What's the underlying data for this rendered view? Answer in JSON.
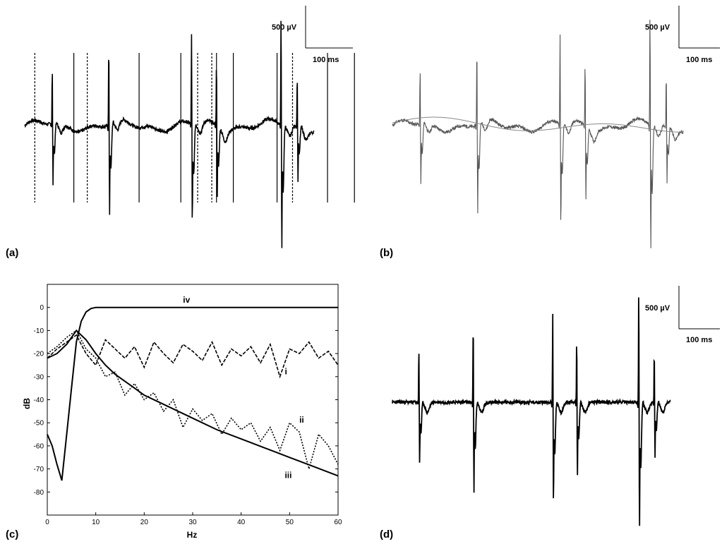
{
  "panels": {
    "a": {
      "label": "(a)"
    },
    "b": {
      "label": "(b)"
    },
    "c": {
      "label": "(c)"
    },
    "d": {
      "label": "(d)"
    }
  },
  "scale_bar": {
    "voltage": "500 µV",
    "time": "100 ms"
  },
  "colors": {
    "trace": "#000000",
    "fit": "#808080",
    "axes": "#000000"
  },
  "chart_data": [
    {
      "panel": "a",
      "type": "line",
      "description_visible": "raw signal with stimulus markers",
      "x_unit": "ms",
      "y_unit": "µV",
      "scale_bar": {
        "y": 500,
        "x": 100
      },
      "markers_solid_ms": [
        73,
        170,
        232,
        285,
        310,
        375,
        450,
        490
      ],
      "markers_dashed_ms": [
        15,
        93,
        257,
        278,
        398
      ],
      "pulses": [
        {
          "t": 40,
          "amp": 0.75
        },
        {
          "t": 124,
          "amp": 1.1
        },
        {
          "t": 247,
          "amp": 1.25
        },
        {
          "t": 284,
          "amp": 0.9
        },
        {
          "t": 380,
          "amp": 1.6
        },
        {
          "t": 404,
          "amp": 0.7
        }
      ]
    },
    {
      "panel": "b",
      "type": "line",
      "description_visible": "signal with fitted artifact curve",
      "x_unit": "ms",
      "y_unit": "µV",
      "scale_bar": {
        "y": 500,
        "x": 100
      },
      "pulses": [
        {
          "t": 40,
          "amp": 0.75
        },
        {
          "t": 124,
          "amp": 1.1
        },
        {
          "t": 247,
          "amp": 1.25
        },
        {
          "t": 284,
          "amp": 0.9
        },
        {
          "t": 380,
          "amp": 1.6
        },
        {
          "t": 404,
          "amp": 0.7
        }
      ]
    },
    {
      "panel": "c",
      "type": "line",
      "title": "",
      "xlabel": "Hz",
      "ylabel": "dB",
      "xlim": [
        0,
        60
      ],
      "ylim": [
        -90,
        10
      ],
      "xticks": [
        0,
        10,
        20,
        30,
        40,
        50,
        60
      ],
      "yticks": [
        0,
        -10,
        -20,
        -30,
        -40,
        -50,
        -60,
        -70,
        -80
      ],
      "series": [
        {
          "name": "i",
          "style": "dashed",
          "x": [
            0,
            2,
            4,
            6,
            8,
            10,
            12,
            14,
            16,
            18,
            20,
            22,
            24,
            26,
            28,
            30,
            32,
            34,
            36,
            38,
            40,
            42,
            44,
            46,
            48,
            50,
            52,
            54,
            56,
            58,
            60
          ],
          "y": [
            -22,
            -18,
            -15,
            -12,
            -20,
            -25,
            -14,
            -18,
            -22,
            -17,
            -26,
            -15,
            -20,
            -24,
            -16,
            -19,
            -23,
            -15,
            -25,
            -18,
            -21,
            -17,
            -24,
            -16,
            -30,
            -18,
            -20,
            -15,
            -22,
            -19,
            -25
          ]
        },
        {
          "name": "ii",
          "style": "dotted",
          "x": [
            0,
            2,
            4,
            6,
            8,
            10,
            12,
            14,
            16,
            18,
            20,
            22,
            24,
            26,
            28,
            30,
            32,
            34,
            36,
            38,
            40,
            42,
            44,
            46,
            48,
            50,
            52,
            54,
            56,
            58,
            60
          ],
          "y": [
            -20,
            -17,
            -13,
            -10,
            -18,
            -22,
            -30,
            -28,
            -38,
            -33,
            -40,
            -37,
            -45,
            -40,
            -52,
            -44,
            -49,
            -46,
            -55,
            -48,
            -53,
            -50,
            -58,
            -52,
            -62,
            -50,
            -54,
            -70,
            -55,
            -60,
            -68
          ]
        },
        {
          "name": "iii",
          "style": "solid",
          "x": [
            0,
            2,
            4,
            6,
            8,
            10,
            12,
            14,
            16,
            18,
            20,
            25,
            30,
            35,
            40,
            45,
            50,
            55,
            60
          ],
          "y": [
            -22,
            -20,
            -16,
            -10,
            -14,
            -20,
            -25,
            -29,
            -32,
            -35,
            -38,
            -43,
            -48,
            -53,
            -57,
            -61,
            -65,
            -69,
            -73
          ]
        },
        {
          "name": "iv",
          "style": "solid",
          "x": [
            0,
            1,
            2,
            3,
            4,
            5,
            6,
            7,
            8,
            9,
            10,
            15,
            20,
            30,
            40,
            50,
            60
          ],
          "y": [
            -55,
            -60,
            -68,
            -75,
            -55,
            -35,
            -15,
            -6,
            -2,
            -0.5,
            0,
            0,
            0,
            0,
            0,
            0,
            0
          ]
        }
      ],
      "series_labels_printed": [
        "i",
        "ii",
        "iii",
        "iv"
      ]
    },
    {
      "panel": "d",
      "type": "line",
      "description_visible": "filtered signal",
      "x_unit": "ms",
      "y_unit": "µV",
      "scale_bar": {
        "y": 500,
        "x": 100
      },
      "pulses": [
        {
          "t": 40,
          "amp": 0.75
        },
        {
          "t": 124,
          "amp": 1.1
        },
        {
          "t": 247,
          "amp": 1.25
        },
        {
          "t": 284,
          "amp": 0.9
        },
        {
          "t": 380,
          "amp": 1.6
        },
        {
          "t": 404,
          "amp": 0.7
        }
      ]
    }
  ]
}
